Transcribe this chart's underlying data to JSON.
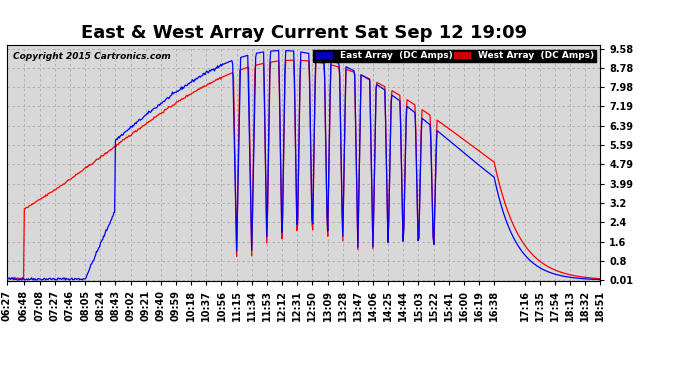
{
  "title": "East & West Array Current Sat Sep 12 19:09",
  "copyright": "Copyright 2015 Cartronics.com",
  "legend_east": "East Array  (DC Amps)",
  "legend_west": "West Array  (DC Amps)",
  "east_color": "#0000ff",
  "west_color": "#ff0000",
  "legend_east_bg": "#0000bb",
  "legend_west_bg": "#cc0000",
  "yticks": [
    0.01,
    0.8,
    1.6,
    2.4,
    3.2,
    3.99,
    4.79,
    5.59,
    6.39,
    7.19,
    7.98,
    8.78,
    9.58
  ],
  "ymin": 0.01,
  "ymax": 9.58,
  "background_color": "#ffffff",
  "plot_bg_color": "#d8d8d8",
  "grid_color": "#aaaaaa",
  "title_fontsize": 13,
  "tick_fontsize": 7,
  "xtick_labels": [
    "06:27",
    "06:48",
    "07:08",
    "07:27",
    "07:46",
    "08:05",
    "08:24",
    "08:43",
    "09:02",
    "09:21",
    "09:40",
    "09:59",
    "10:18",
    "10:37",
    "10:56",
    "11:15",
    "11:34",
    "11:53",
    "12:12",
    "12:31",
    "12:50",
    "13:09",
    "13:28",
    "13:47",
    "14:06",
    "14:25",
    "14:44",
    "15:03",
    "15:22",
    "15:41",
    "16:00",
    "16:19",
    "16:38",
    "17:16",
    "17:35",
    "17:54",
    "18:13",
    "18:32",
    "18:51"
  ]
}
